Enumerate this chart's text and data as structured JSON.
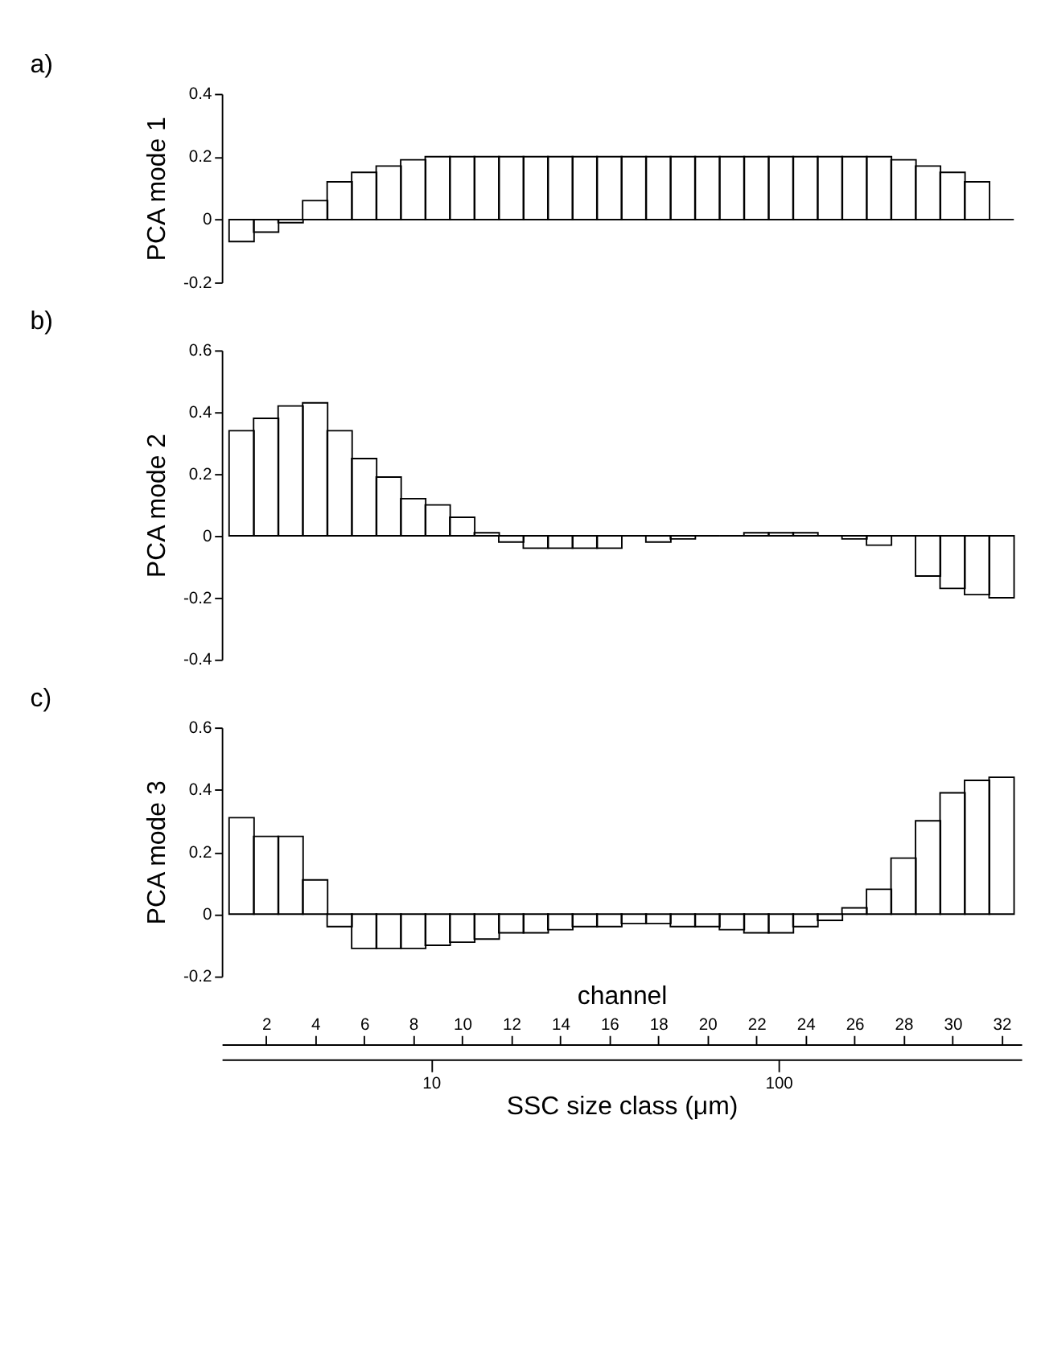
{
  "chart_data": [
    {
      "type": "bar",
      "title": "a)",
      "ylabel": "PCA mode 1",
      "x": [
        1,
        2,
        3,
        4,
        5,
        6,
        7,
        8,
        9,
        10,
        11,
        12,
        13,
        14,
        15,
        16,
        17,
        18,
        19,
        20,
        21,
        22,
        23,
        24,
        25,
        26,
        27,
        28,
        29,
        30,
        31
      ],
      "xlim": [
        0.5,
        32.5
      ],
      "values": [
        -0.07,
        -0.04,
        -0.01,
        0.06,
        0.12,
        0.15,
        0.17,
        0.19,
        0.2,
        0.2,
        0.2,
        0.2,
        0.2,
        0.2,
        0.2,
        0.2,
        0.2,
        0.2,
        0.2,
        0.2,
        0.2,
        0.2,
        0.2,
        0.2,
        0.2,
        0.2,
        0.2,
        0.19,
        0.17,
        0.15,
        0.12
      ],
      "color": "#000000",
      "ylim": [
        -0.2,
        0.4
      ],
      "yticks": [
        -0.2,
        0,
        0.2,
        0.4
      ],
      "grid": false,
      "tick_labels": "y",
      "ref_lines": [
        {
          "axis": "y",
          "value": 0
        }
      ]
    },
    {
      "type": "bar",
      "title": "b)",
      "ylabel": "PCA mode 2",
      "x": [
        1,
        2,
        3,
        4,
        5,
        6,
        7,
        8,
        9,
        10,
        11,
        12,
        13,
        14,
        15,
        16,
        17,
        18,
        19,
        20,
        21,
        22,
        23,
        24,
        25,
        26,
        27,
        28,
        29,
        30,
        31,
        32
      ],
      "xlim": [
        0.5,
        32.5
      ],
      "values": [
        0.34,
        0.38,
        0.42,
        0.43,
        0.34,
        0.25,
        0.19,
        0.12,
        0.1,
        0.06,
        0.01,
        -0.02,
        -0.04,
        -0.04,
        -0.04,
        -0.04,
        0,
        -0.02,
        -0.01,
        0,
        0,
        0.01,
        0.01,
        0.01,
        0,
        -0.01,
        -0.03,
        0,
        -0.13,
        -0.17,
        -0.19,
        -0.2
      ],
      "color": "#000000",
      "ylim": [
        -0.4,
        0.6
      ],
      "yticks": [
        -0.4,
        -0.2,
        0,
        0.2,
        0.4,
        0.6
      ],
      "grid": false,
      "tick_labels": "y"
    },
    {
      "type": "bar",
      "title": "c)",
      "ylabel": "PCA mode 3",
      "xlabel": "channel",
      "x2label": "SSC size class (μm)",
      "x": [
        1,
        2,
        3,
        4,
        5,
        6,
        7,
        8,
        9,
        10,
        11,
        12,
        13,
        14,
        15,
        16,
        17,
        18,
        19,
        20,
        21,
        22,
        23,
        24,
        25,
        26,
        27,
        28,
        29,
        30,
        31,
        32
      ],
      "xlim": [
        0.5,
        32.5
      ],
      "xticks": [
        2,
        4,
        6,
        8,
        10,
        12,
        14,
        16,
        18,
        20,
        22,
        24,
        26,
        28,
        30,
        32
      ],
      "x2lim": [
        2.5,
        500
      ],
      "x2ticks": [
        10,
        100
      ],
      "log": "x2",
      "values": [
        0.31,
        0.25,
        0.25,
        0.11,
        -0.04,
        -0.11,
        -0.11,
        -0.11,
        -0.1,
        -0.09,
        -0.08,
        -0.06,
        -0.06,
        -0.05,
        -0.04,
        -0.04,
        -0.03,
        -0.03,
        -0.04,
        -0.04,
        -0.05,
        -0.06,
        -0.06,
        -0.04,
        -0.02,
        0.02,
        0.08,
        0.18,
        0.3,
        0.39,
        0.43,
        0.44
      ],
      "color": "#000000",
      "ylim": [
        -0.2,
        0.6
      ],
      "yticks": [
        -0.2,
        0,
        0.2,
        0.4,
        0.6
      ],
      "grid": false
    }
  ]
}
